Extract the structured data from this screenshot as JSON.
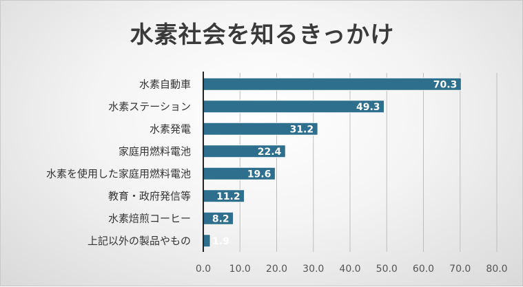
{
  "chart_data": {
    "type": "bar",
    "orientation": "horizontal",
    "title": "水素社会を知るきっかけ",
    "categories": [
      "水素自動車",
      "水素ステーション",
      "水素発電",
      "家庭用燃料電池",
      "水素を使用した家庭用燃料電池",
      "教育・政府発信等",
      "水素焙煎コーヒー",
      "上記以外の製品やもの"
    ],
    "values": [
      70.3,
      49.3,
      31.2,
      22.4,
      19.6,
      11.2,
      8.2,
      1.9
    ],
    "value_labels": [
      "70.3",
      "49.3",
      "31.2",
      "22.4",
      "19.6",
      "11.2",
      "8.2",
      "1.9"
    ],
    "xlim": [
      0,
      80
    ],
    "xticks": [
      "0.0",
      "10.0",
      "20.0",
      "30.0",
      "40.0",
      "50.0",
      "60.0",
      "70.0",
      "80.0"
    ],
    "grid": true,
    "legend": "none",
    "bar_color": "#2e6f8e",
    "xlabel": "",
    "ylabel": ""
  }
}
